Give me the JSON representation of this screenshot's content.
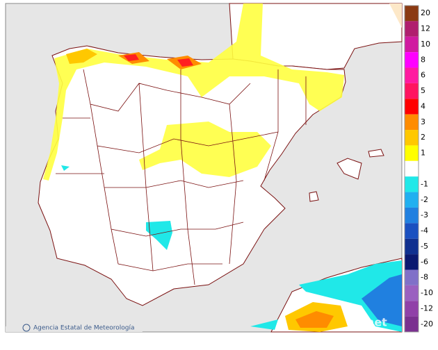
{
  "credit": "Agencia Estatal de Meteorología",
  "watermark": "aemet",
  "legend": {
    "positive": [
      {
        "label": 20,
        "color": "#8b3a12"
      },
      {
        "label": 12,
        "color": "#b01e6e"
      },
      {
        "label": 10,
        "color": "#d01aa0"
      },
      {
        "label": 8,
        "color": "#ff00ff"
      },
      {
        "label": 6,
        "color": "#ff1aa0"
      },
      {
        "label": 5,
        "color": "#ff1460"
      },
      {
        "label": 4,
        "color": "#ff0000"
      },
      {
        "label": 3,
        "color": "#ff8c00"
      },
      {
        "label": 2,
        "color": "#ffc800"
      },
      {
        "label": 1,
        "color": "#ffff00"
      }
    ],
    "negative": [
      {
        "label": -1,
        "color": "#20e8e8"
      },
      {
        "label": -2,
        "color": "#20b0f0"
      },
      {
        "label": -3,
        "color": "#2080e0"
      },
      {
        "label": -4,
        "color": "#1a50c0"
      },
      {
        "label": -5,
        "color": "#103090"
      },
      {
        "label": -6,
        "color": "#0a1870"
      },
      {
        "label": -8,
        "color": "#8070c8"
      },
      {
        "label": -10,
        "color": "#9a60c0"
      },
      {
        "label": -12,
        "color": "#9040a8"
      },
      {
        "label": -20,
        "color": "#7a3090"
      }
    ]
  }
}
